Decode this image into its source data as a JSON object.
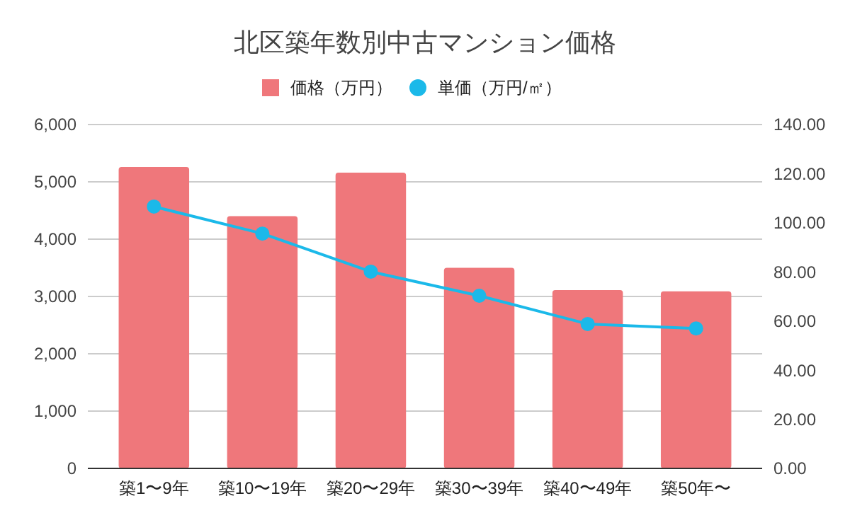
{
  "chart_data": {
    "type": "bar",
    "title": "北区築年数別中古マンション価格",
    "categories": [
      "築1〜9年",
      "築10〜19年",
      "築20〜29年",
      "築30〜39年",
      "築40〜49年",
      "築50年〜"
    ],
    "series": [
      {
        "name": "価格（万円）",
        "color": "#ef777b",
        "values": [
          5260,
          4400,
          5160,
          3500,
          3110,
          3090
        ]
      },
      {
        "name": "単価（万円/㎡）",
        "type": "line",
        "axis": "y2",
        "color": "#1bb9e9",
        "values": [
          106.6,
          95.6,
          80.1,
          70.3,
          58.8,
          57.0
        ]
      }
    ],
    "ylim": [
      0,
      6000
    ],
    "yticks": [
      {
        "value": 0,
        "label": "0"
      },
      {
        "value": 1000,
        "label": "1,000"
      },
      {
        "value": 2000,
        "label": "2,000"
      },
      {
        "value": 3000,
        "label": "3,000"
      },
      {
        "value": 4000,
        "label": "4,000"
      },
      {
        "value": 5000,
        "label": "5,000"
      },
      {
        "value": 6000,
        "label": "6,000"
      }
    ],
    "y2lim": [
      0,
      140
    ],
    "y2ticks": [
      {
        "value": 0,
        "label": "0.00"
      },
      {
        "value": 20,
        "label": "20.00"
      },
      {
        "value": 40,
        "label": "40.00"
      },
      {
        "value": 60,
        "label": "60.00"
      },
      {
        "value": 80,
        "label": "80.00"
      },
      {
        "value": 100,
        "label": "100.00"
      },
      {
        "value": 120,
        "label": "120.00"
      },
      {
        "value": 140,
        "label": "140.00"
      }
    ],
    "grid": "y",
    "legend": "top",
    "marker": "circle",
    "line_style": "solid"
  }
}
